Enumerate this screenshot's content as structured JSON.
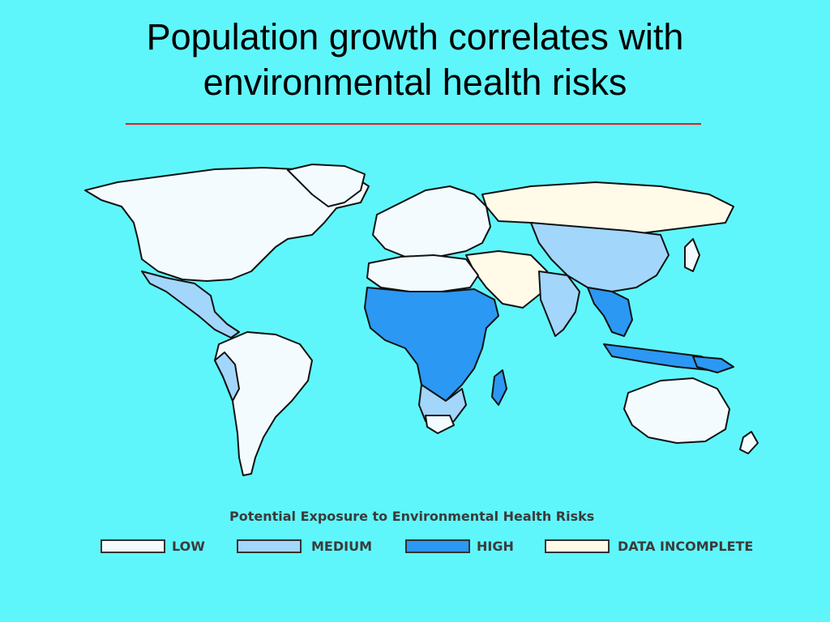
{
  "slide": {
    "title_line1": "Population growth correlates with",
    "title_line2": "environmental health risks"
  },
  "legend": {
    "heading": "Potential Exposure to Environmental Health Risks",
    "items": [
      {
        "label": "LOW",
        "color": "#f3fbff"
      },
      {
        "label": "MEDIUM",
        "color": "#a3d6fb"
      },
      {
        "label": "HIGH",
        "color": "#2b98f4"
      },
      {
        "label": "DATA INCOMPLETE",
        "color": "#fffbe8"
      }
    ]
  },
  "colors": {
    "background": "#5ff6fb",
    "title_rule": "#e0201c",
    "outline": "#111111"
  }
}
